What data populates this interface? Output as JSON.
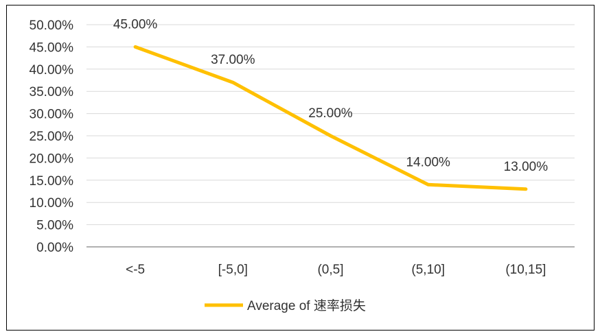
{
  "chart_data": {
    "type": "line",
    "title": "",
    "xlabel": "",
    "ylabel": "",
    "categories": [
      "<-5",
      "[-5,0]",
      "(0,5]",
      "(5,10]",
      "(10,15]"
    ],
    "series": [
      {
        "name": "Average of 速率损失",
        "values": [
          45.0,
          37.0,
          25.0,
          14.0,
          13.0
        ],
        "data_labels": [
          "45.00%",
          "37.00%",
          "25.00%",
          "14.00%",
          "13.00%"
        ],
        "color": "#FFC000"
      }
    ],
    "ylim": [
      0,
      50
    ],
    "yticks": [
      0,
      5,
      10,
      15,
      20,
      25,
      30,
      35,
      40,
      45,
      50
    ],
    "ytick_labels": [
      "0.00%",
      "5.00%",
      "10.00%",
      "15.00%",
      "20.00%",
      "25.00%",
      "30.00%",
      "35.00%",
      "40.00%",
      "45.00%",
      "50.00%"
    ],
    "grid": true,
    "gridline_color": "#D9D9D9",
    "axis_color": "#808080",
    "legend_position": "bottom"
  }
}
